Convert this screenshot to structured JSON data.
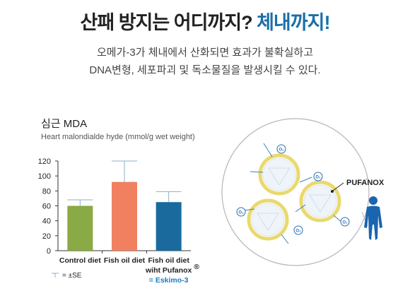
{
  "headline": {
    "main": "산패 방지는 어디까지? ",
    "accent": "체내까지!"
  },
  "description": {
    "line1": "오메가-3가 체내에서 산화되면 효과가 불확실하고",
    "line2": "DNA변형, 세포파괴 및 독소물질을 발생시킬 수 있다."
  },
  "chart_data": {
    "type": "bar",
    "title": "심근 MDA",
    "ylabel": "Heart malondialde hyde (mmol/g wet weight)",
    "xlabel": "",
    "categories": [
      {
        "lines": [
          "Control diet"
        ]
      },
      {
        "lines": [
          "Fish oil diet"
        ]
      },
      {
        "lines": [
          "Fish oil diet",
          "wiht Pufanox"
        ],
        "superscript": "®",
        "note": "= Eskimo-3"
      }
    ],
    "values": [
      60,
      92,
      65
    ],
    "errors": [
      8,
      28,
      14
    ],
    "bar_colors": [
      "#8aaa45",
      "#f08060",
      "#1a6a9e"
    ],
    "ylim": [
      0,
      120
    ],
    "yticks": [
      "0",
      "20",
      "40",
      "60",
      "80",
      "100",
      "120"
    ],
    "error_legend": "= ±SE",
    "grid": false
  },
  "illustration": {
    "label": "PUFANOX",
    "o2_labels": [
      "O₂",
      "O₂",
      "O₂",
      "O₂",
      "O₂"
    ],
    "colors": {
      "circle_border": "#b0b0b0",
      "capsule_ring": "#e8d870",
      "capsule_fill": "#eaf2fa",
      "human": "#1b64b0"
    }
  }
}
